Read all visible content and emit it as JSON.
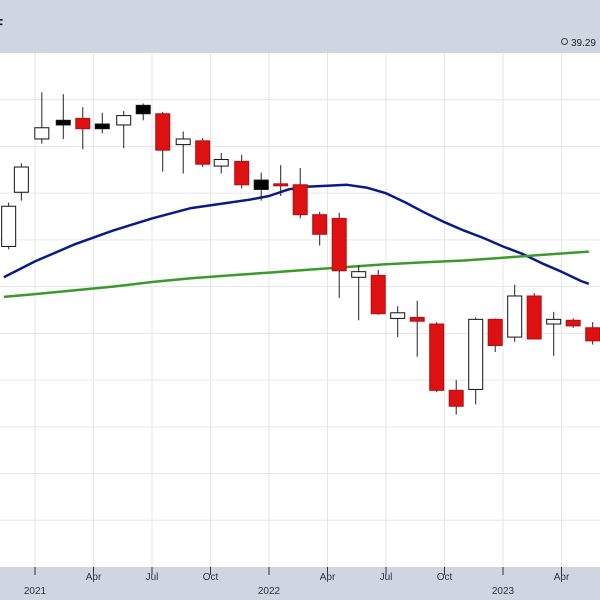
{
  "header": {
    "title_fragment": "F",
    "readout_value": "39.29"
  },
  "colors": {
    "up": "#ffffff",
    "down": "#dd1111",
    "neutral": "#000000",
    "ma_short": "#0a1a8a",
    "ma_long": "#3a9a2a",
    "grid": "#e3e6ec",
    "panel": "#cfd6e2"
  },
  "chart_data": {
    "type": "candlestick",
    "ylim": [
      20,
      75
    ],
    "grid": true,
    "x_ticks": [
      {
        "label": "",
        "month": 0,
        "year_label": "2021"
      },
      {
        "label": "Apr",
        "month": 3
      },
      {
        "label": "Jul",
        "month": 6
      },
      {
        "label": "Oct",
        "month": 9
      },
      {
        "label": "",
        "month": 12,
        "year_label": "2022"
      },
      {
        "label": "Apr",
        "month": 15
      },
      {
        "label": "Jul",
        "month": 18
      },
      {
        "label": "Oct",
        "month": 21
      },
      {
        "label": "",
        "month": 24,
        "year_label": "2023"
      },
      {
        "label": "Apr",
        "month": 27
      }
    ],
    "candles": [
      {
        "month": -1.35,
        "open": 54.3,
        "close": 58.6,
        "high": 59.0,
        "low": 54.0,
        "color": "up"
      },
      {
        "month": -0.7,
        "open": 60.1,
        "close": 62.8,
        "high": 63.2,
        "low": 59.2,
        "color": "up"
      },
      {
        "month": 0.35,
        "open": 65.8,
        "close": 67.0,
        "high": 70.8,
        "low": 65.3,
        "color": "up"
      },
      {
        "month": 1.45,
        "open": 67.3,
        "close": 67.8,
        "high": 70.6,
        "low": 65.8,
        "color": "neutral"
      },
      {
        "month": 2.45,
        "open": 68.0,
        "close": 66.9,
        "high": 69.2,
        "low": 64.7,
        "color": "down"
      },
      {
        "month": 3.45,
        "open": 66.9,
        "close": 67.4,
        "high": 68.6,
        "low": 66.4,
        "color": "neutral"
      },
      {
        "month": 4.55,
        "open": 67.3,
        "close": 68.3,
        "high": 68.8,
        "low": 64.8,
        "color": "up"
      },
      {
        "month": 5.55,
        "open": 68.5,
        "close": 69.4,
        "high": 69.6,
        "low": 67.8,
        "color": "neutral"
      },
      {
        "month": 6.55,
        "open": 68.5,
        "close": 64.6,
        "high": 68.7,
        "low": 62.3,
        "color": "down"
      },
      {
        "month": 7.6,
        "open": 65.2,
        "close": 65.8,
        "high": 66.6,
        "low": 62.1,
        "color": "up"
      },
      {
        "month": 8.6,
        "open": 65.6,
        "close": 63.1,
        "high": 65.9,
        "low": 62.8,
        "color": "down"
      },
      {
        "month": 9.55,
        "open": 62.9,
        "close": 63.6,
        "high": 64.3,
        "low": 62.1,
        "color": "up"
      },
      {
        "month": 10.6,
        "open": 63.4,
        "close": 60.9,
        "high": 64.1,
        "low": 60.5,
        "color": "down"
      },
      {
        "month": 11.6,
        "open": 61.4,
        "close": 60.4,
        "high": 62.2,
        "low": 59.2,
        "color": "neutral"
      },
      {
        "month": 12.6,
        "open": 61.0,
        "close": 60.8,
        "high": 63.0,
        "low": 59.7,
        "color": "down"
      },
      {
        "month": 13.6,
        "open": 60.9,
        "close": 57.7,
        "high": 62.7,
        "low": 57.3,
        "color": "down"
      },
      {
        "month": 14.6,
        "open": 57.7,
        "close": 55.6,
        "high": 58.0,
        "low": 54.4,
        "color": "down"
      },
      {
        "month": 15.6,
        "open": 57.3,
        "close": 51.7,
        "high": 57.9,
        "low": 48.8,
        "color": "down"
      },
      {
        "month": 16.6,
        "open": 51.6,
        "close": 51.0,
        "high": 52.3,
        "low": 46.4,
        "color": "up"
      },
      {
        "month": 17.6,
        "open": 51.2,
        "close": 47.1,
        "high": 51.8,
        "low": 47.0,
        "color": "down"
      },
      {
        "month": 18.6,
        "open": 47.2,
        "close": 46.6,
        "high": 47.9,
        "low": 44.6,
        "color": "up"
      },
      {
        "month": 19.6,
        "open": 46.7,
        "close": 46.3,
        "high": 48.5,
        "low": 42.5,
        "color": "down"
      },
      {
        "month": 20.6,
        "open": 46.0,
        "close": 38.9,
        "high": 46.2,
        "low": 38.7,
        "color": "down"
      },
      {
        "month": 21.6,
        "open": 38.9,
        "close": 37.2,
        "high": 40.0,
        "low": 36.3,
        "color": "down"
      },
      {
        "month": 22.6,
        "open": 39.0,
        "close": 46.5,
        "high": 46.7,
        "low": 37.4,
        "color": "up"
      },
      {
        "month": 23.6,
        "open": 46.5,
        "close": 43.7,
        "high": 46.6,
        "low": 43.0,
        "color": "down"
      },
      {
        "month": 24.6,
        "open": 44.6,
        "close": 49.0,
        "high": 50.2,
        "low": 44.1,
        "color": "up"
      },
      {
        "month": 25.6,
        "open": 49.0,
        "close": 44.4,
        "high": 49.3,
        "low": 44.4,
        "color": "down"
      },
      {
        "month": 26.6,
        "open": 46.0,
        "close": 46.5,
        "high": 47.3,
        "low": 42.6,
        "color": "up"
      },
      {
        "month": 27.6,
        "open": 46.4,
        "close": 45.8,
        "high": 46.6,
        "low": 45.6,
        "color": "down"
      },
      {
        "month": 28.6,
        "open": 45.6,
        "close": 44.2,
        "high": 46.2,
        "low": 43.8,
        "color": "down"
      }
    ],
    "series": [
      {
        "key": "ma_short",
        "points": [
          [
            -1.6,
            51.0
          ],
          [
            0,
            52.7
          ],
          [
            2,
            54.5
          ],
          [
            4,
            56.0
          ],
          [
            6,
            57.3
          ],
          [
            8,
            58.4
          ],
          [
            10,
            59.0
          ],
          [
            11,
            59.3
          ],
          [
            12,
            59.7
          ],
          [
            13,
            60.4
          ],
          [
            14,
            60.7
          ],
          [
            15,
            60.8
          ],
          [
            16,
            60.9
          ],
          [
            17,
            60.6
          ],
          [
            18,
            60.0
          ],
          [
            19,
            59.0
          ],
          [
            20,
            57.9
          ],
          [
            21,
            56.9
          ],
          [
            22,
            56.0
          ],
          [
            23,
            55.2
          ],
          [
            24,
            54.3
          ],
          [
            25,
            53.5
          ],
          [
            26,
            52.5
          ],
          [
            27,
            51.6
          ],
          [
            28,
            50.6
          ],
          [
            28.4,
            50.3
          ]
        ]
      },
      {
        "key": "ma_long",
        "points": [
          [
            -1.6,
            48.9
          ],
          [
            0,
            49.2
          ],
          [
            2,
            49.6
          ],
          [
            4,
            50.0
          ],
          [
            6,
            50.5
          ],
          [
            8,
            50.9
          ],
          [
            10,
            51.2
          ],
          [
            12,
            51.5
          ],
          [
            14,
            51.8
          ],
          [
            16,
            52.1
          ],
          [
            18,
            52.4
          ],
          [
            20,
            52.6
          ],
          [
            22,
            52.8
          ],
          [
            24,
            53.1
          ],
          [
            26,
            53.4
          ],
          [
            28,
            53.7
          ],
          [
            28.4,
            53.75
          ]
        ]
      }
    ]
  }
}
